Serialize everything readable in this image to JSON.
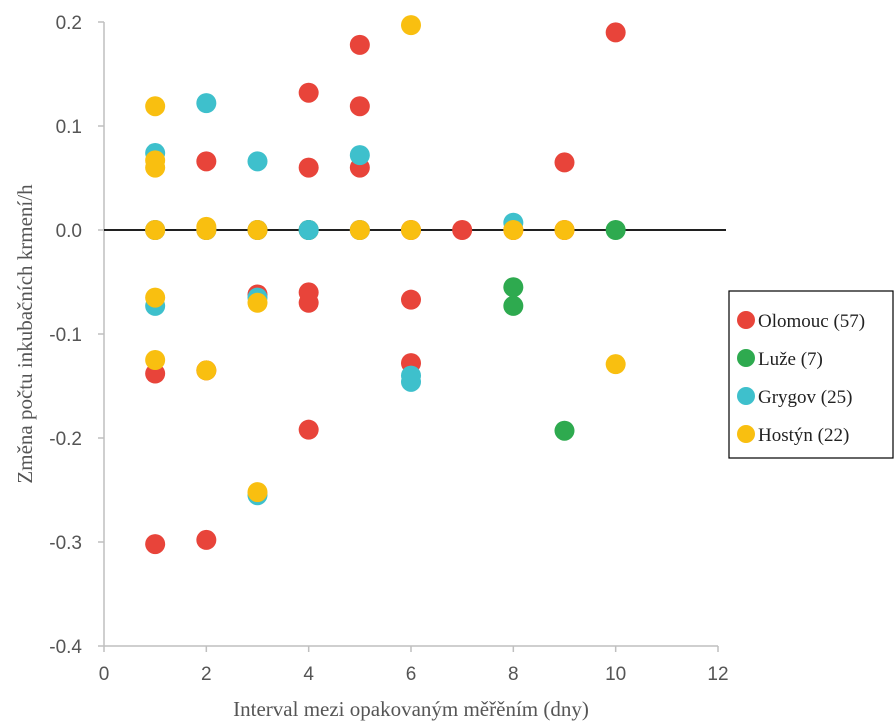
{
  "chart_data": {
    "type": "scatter",
    "xlabel": "Interval mezi opakovaným měřěním (dny)",
    "ylabel": "Změna počtu inkubačních krmení/h",
    "xlim": [
      0,
      12
    ],
    "ylim": [
      -0.4,
      0.2
    ],
    "xticks": [
      "0",
      "2",
      "4",
      "6",
      "8",
      "10",
      "12"
    ],
    "yticks": [
      "0.2",
      "0.1",
      "0.0",
      "-0.1",
      "-0.2",
      "-0.3",
      "-0.4"
    ],
    "grid": false,
    "zero_line": true,
    "legend_position": "right",
    "series": [
      {
        "name": "Olomouc (57)",
        "color": "#E8443A",
        "points": [
          [
            1,
            0.0
          ],
          [
            1,
            -0.138
          ],
          [
            1,
            -0.302
          ],
          [
            2,
            0.066
          ],
          [
            2,
            0.0
          ],
          [
            2,
            -0.135
          ],
          [
            2,
            -0.298
          ],
          [
            3,
            0.0
          ],
          [
            3,
            -0.062
          ],
          [
            4,
            0.132
          ],
          [
            4,
            0.06
          ],
          [
            4,
            0.0
          ],
          [
            4,
            -0.06
          ],
          [
            4,
            -0.07
          ],
          [
            4,
            -0.192
          ],
          [
            5,
            0.178
          ],
          [
            5,
            0.119
          ],
          [
            5,
            0.06
          ],
          [
            5,
            0.0
          ],
          [
            6,
            0.0
          ],
          [
            6,
            -0.067
          ],
          [
            6,
            -0.128
          ],
          [
            7,
            0.0
          ],
          [
            8,
            0.0
          ],
          [
            9,
            0.065
          ],
          [
            9,
            0.0
          ],
          [
            10,
            0.19
          ]
        ]
      },
      {
        "name": "Luže (7)",
        "color": "#2EAA4F",
        "points": [
          [
            4,
            0.0
          ],
          [
            8,
            -0.055
          ],
          [
            8,
            -0.073
          ],
          [
            9,
            -0.193
          ],
          [
            10,
            0.0
          ]
        ]
      },
      {
        "name": "Grygov (25)",
        "color": "#3EC0CC",
        "points": [
          [
            1,
            0.074
          ],
          [
            1,
            0.0
          ],
          [
            1,
            -0.073
          ],
          [
            2,
            0.122
          ],
          [
            2,
            0.0
          ],
          [
            3,
            0.066
          ],
          [
            3,
            0.0
          ],
          [
            3,
            -0.065
          ],
          [
            3,
            -0.255
          ],
          [
            4,
            0.0
          ],
          [
            5,
            0.072
          ],
          [
            5,
            0.0
          ],
          [
            6,
            -0.14
          ],
          [
            6,
            -0.146
          ],
          [
            8,
            0.007
          ]
        ]
      },
      {
        "name": "Hostýn (22)",
        "color": "#F9BF10",
        "points": [
          [
            1,
            0.119
          ],
          [
            1,
            0.067
          ],
          [
            1,
            0.06
          ],
          [
            1,
            0.0
          ],
          [
            1,
            -0.065
          ],
          [
            1,
            -0.125
          ],
          [
            2,
            0.003
          ],
          [
            2,
            0.0
          ],
          [
            2,
            -0.135
          ],
          [
            3,
            0.0
          ],
          [
            3,
            -0.07
          ],
          [
            3,
            -0.252
          ],
          [
            5,
            0.0
          ],
          [
            6,
            0.197
          ],
          [
            6,
            0.0
          ],
          [
            8,
            0.0
          ],
          [
            9,
            0.0
          ],
          [
            10,
            -0.129
          ]
        ]
      }
    ]
  }
}
